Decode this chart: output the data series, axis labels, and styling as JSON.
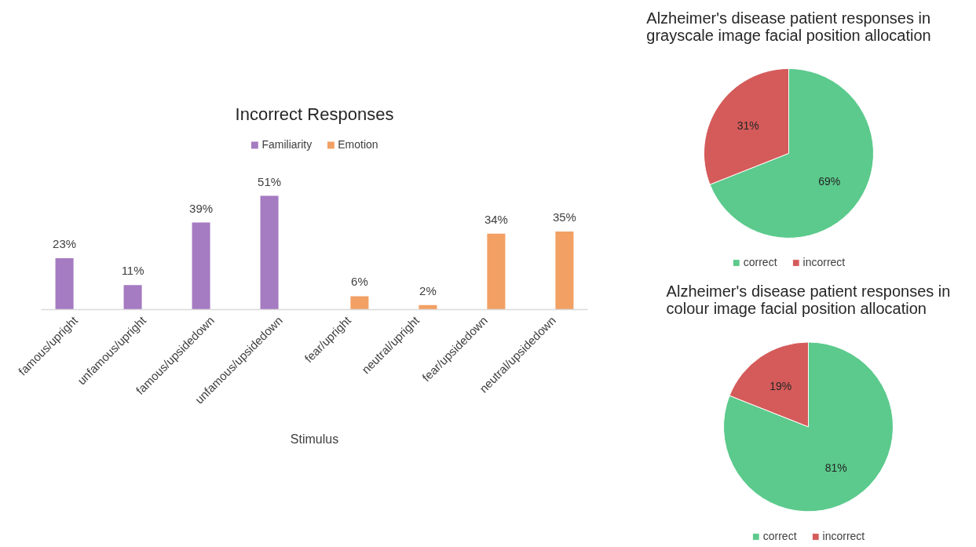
{
  "chart_data": [
    {
      "type": "bar",
      "title": "Incorrect Responses",
      "xlabel": "Stimulus",
      "legend": "top",
      "categories": [
        "famous/upright",
        "unfamous/upright",
        "famous/upsidedown",
        "unfamous/upsidedown",
        "fear/upright",
        "neutral/upright",
        "fear/upsidedown",
        "neutral/upsidedown"
      ],
      "series": [
        {
          "name": "Familiarity",
          "color": "#a57bc2",
          "values": [
            23,
            11,
            39,
            51,
            null,
            null,
            null,
            null
          ],
          "value_labels": [
            "23%",
            "11%",
            "39%",
            "51%",
            null,
            null,
            null,
            null
          ]
        },
        {
          "name": "Emotion",
          "color": "#f2a064",
          "values": [
            null,
            null,
            null,
            null,
            6,
            2,
            34,
            35
          ],
          "value_labels": [
            null,
            null,
            null,
            null,
            "6%",
            "2%",
            "34%",
            "35%"
          ]
        }
      ]
    },
    {
      "type": "pie",
      "title": "Alzheimer's disease patient responses in grayscale image facial position allocation",
      "legend": "bottom",
      "categories": [
        "correct",
        "incorrect"
      ],
      "values": [
        69,
        31
      ],
      "colors": [
        "#5bca8c",
        "#d45b5a"
      ],
      "value_labels": [
        "69%",
        "31%"
      ]
    },
    {
      "type": "pie",
      "title": "Alzheimer's disease patient responses in colour image facial position allocation",
      "legend": "bottom",
      "categories": [
        "correct",
        "incorrect"
      ],
      "values": [
        81,
        19
      ],
      "colors": [
        "#5bca8c",
        "#d45b5a"
      ],
      "value_labels": [
        "81%",
        "19%"
      ]
    }
  ]
}
